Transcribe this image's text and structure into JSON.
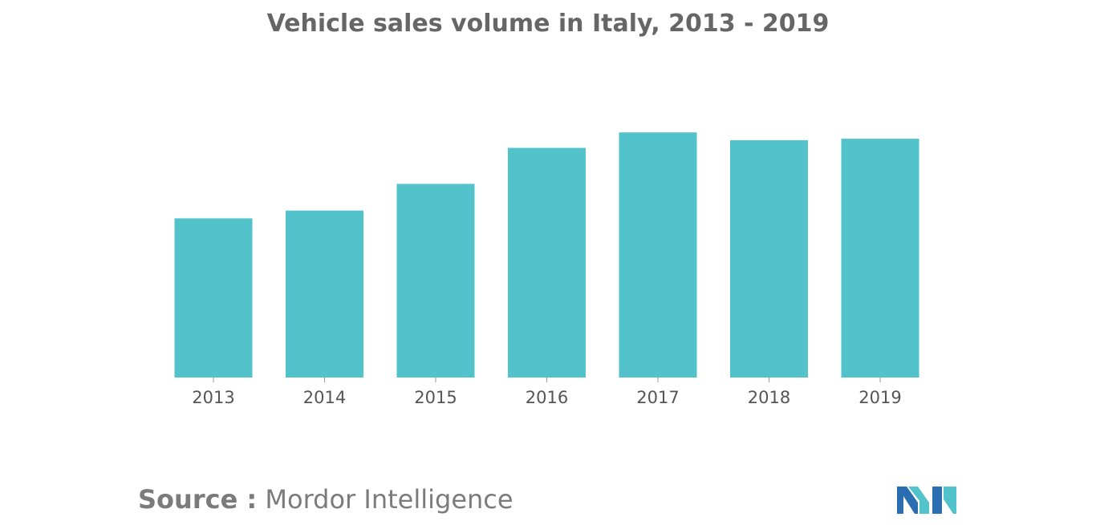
{
  "chart_data": {
    "type": "bar",
    "title": "Vehicle sales volume in Italy, 2013 - 2019",
    "categories": [
      "2013",
      "2014",
      "2015",
      "2016",
      "2017",
      "2018",
      "2019"
    ],
    "values": [
      2.26,
      2.37,
      2.75,
      3.26,
      3.48,
      3.37,
      3.39
    ],
    "xlabel": "",
    "ylabel": "",
    "ylim": [
      0,
      4.7
    ],
    "grid": false,
    "legend": "none",
    "bar_color": "#52c3ca"
  },
  "source": {
    "prefix": "Source :",
    "name": "Mordor Intelligence"
  },
  "logo": {
    "colors": [
      "#2a6db0",
      "#52c3ca"
    ]
  }
}
